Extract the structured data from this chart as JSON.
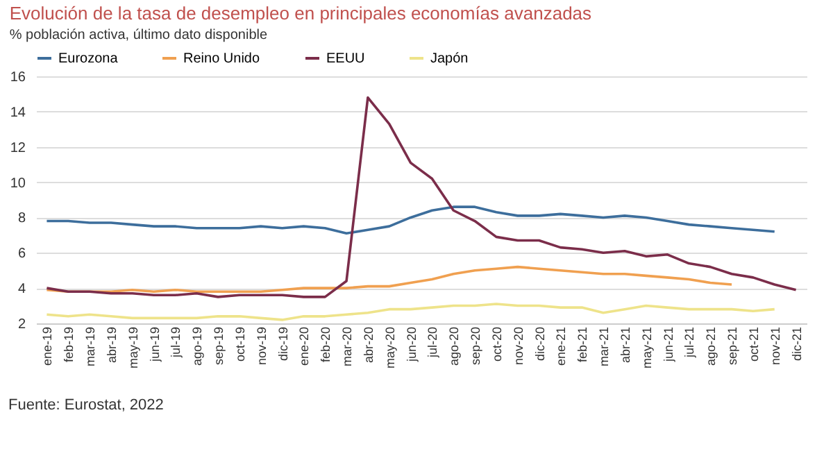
{
  "chart_data": {
    "type": "line",
    "title": "Evolución de la tasa de desempleo en principales economías avanzadas",
    "subtitle": "% población activa, último dato disponible",
    "annotations": [
      "Fuente: Eurostat, 2022"
    ],
    "categories": [
      "ene-19",
      "feb-19",
      "mar-19",
      "abr-19",
      "may-19",
      "jun-19",
      "jul-19",
      "ago-19",
      "sep-19",
      "oct-19",
      "nov-19",
      "dic-19",
      "ene-20",
      "feb-20",
      "mar-20",
      "abr-20",
      "may-20",
      "jun-20",
      "jul-20",
      "ago-20",
      "sep-20",
      "oct-20",
      "nov-20",
      "dic-20",
      "ene-21",
      "feb-21",
      "mar-21",
      "abr-21",
      "may-21",
      "jun-21",
      "jul-21",
      "ago-21",
      "sep-21",
      "oct-21",
      "nov-21",
      "dic-21"
    ],
    "series": [
      {
        "name": "Eurozona",
        "color": "#3d6e9c",
        "values": [
          7.8,
          7.8,
          7.7,
          7.7,
          7.6,
          7.5,
          7.5,
          7.4,
          7.4,
          7.4,
          7.5,
          7.4,
          7.5,
          7.4,
          7.1,
          7.3,
          7.5,
          8.0,
          8.4,
          8.6,
          8.6,
          8.3,
          8.1,
          8.1,
          8.2,
          8.1,
          8.0,
          8.1,
          8.0,
          7.8,
          7.6,
          7.5,
          7.4,
          7.3,
          7.2,
          null
        ]
      },
      {
        "name": "Reino Unido",
        "color": "#f0a050",
        "values": [
          3.9,
          3.8,
          3.8,
          3.8,
          3.9,
          3.8,
          3.9,
          3.8,
          3.8,
          3.8,
          3.8,
          3.9,
          4.0,
          4.0,
          4.0,
          4.1,
          4.1,
          4.3,
          4.5,
          4.8,
          5.0,
          5.1,
          5.2,
          5.1,
          5.0,
          4.9,
          4.8,
          4.8,
          4.7,
          4.6,
          4.5,
          4.3,
          4.2,
          null,
          null,
          null
        ]
      },
      {
        "name": "EEUU",
        "color": "#7b2d4a",
        "values": [
          4.0,
          3.8,
          3.8,
          3.7,
          3.7,
          3.6,
          3.6,
          3.7,
          3.5,
          3.6,
          3.6,
          3.6,
          3.5,
          3.5,
          4.4,
          14.8,
          13.3,
          11.1,
          10.2,
          8.4,
          7.8,
          6.9,
          6.7,
          6.7,
          6.3,
          6.2,
          6.0,
          6.1,
          5.8,
          5.9,
          5.4,
          5.2,
          4.8,
          4.6,
          4.2,
          3.9
        ]
      },
      {
        "name": "Japón",
        "color": "#eee38a",
        "values": [
          2.5,
          2.4,
          2.5,
          2.4,
          2.3,
          2.3,
          2.3,
          2.3,
          2.4,
          2.4,
          2.3,
          2.2,
          2.4,
          2.4,
          2.5,
          2.6,
          2.8,
          2.8,
          2.9,
          3.0,
          3.0,
          3.1,
          3.0,
          3.0,
          2.9,
          2.9,
          2.6,
          2.8,
          3.0,
          2.9,
          2.8,
          2.8,
          2.8,
          2.7,
          2.8,
          null
        ]
      }
    ],
    "ylim": [
      2,
      16
    ],
    "yticks": [
      2,
      4,
      6,
      8,
      10,
      12,
      14,
      16
    ],
    "grid": "y",
    "legend": "top"
  }
}
